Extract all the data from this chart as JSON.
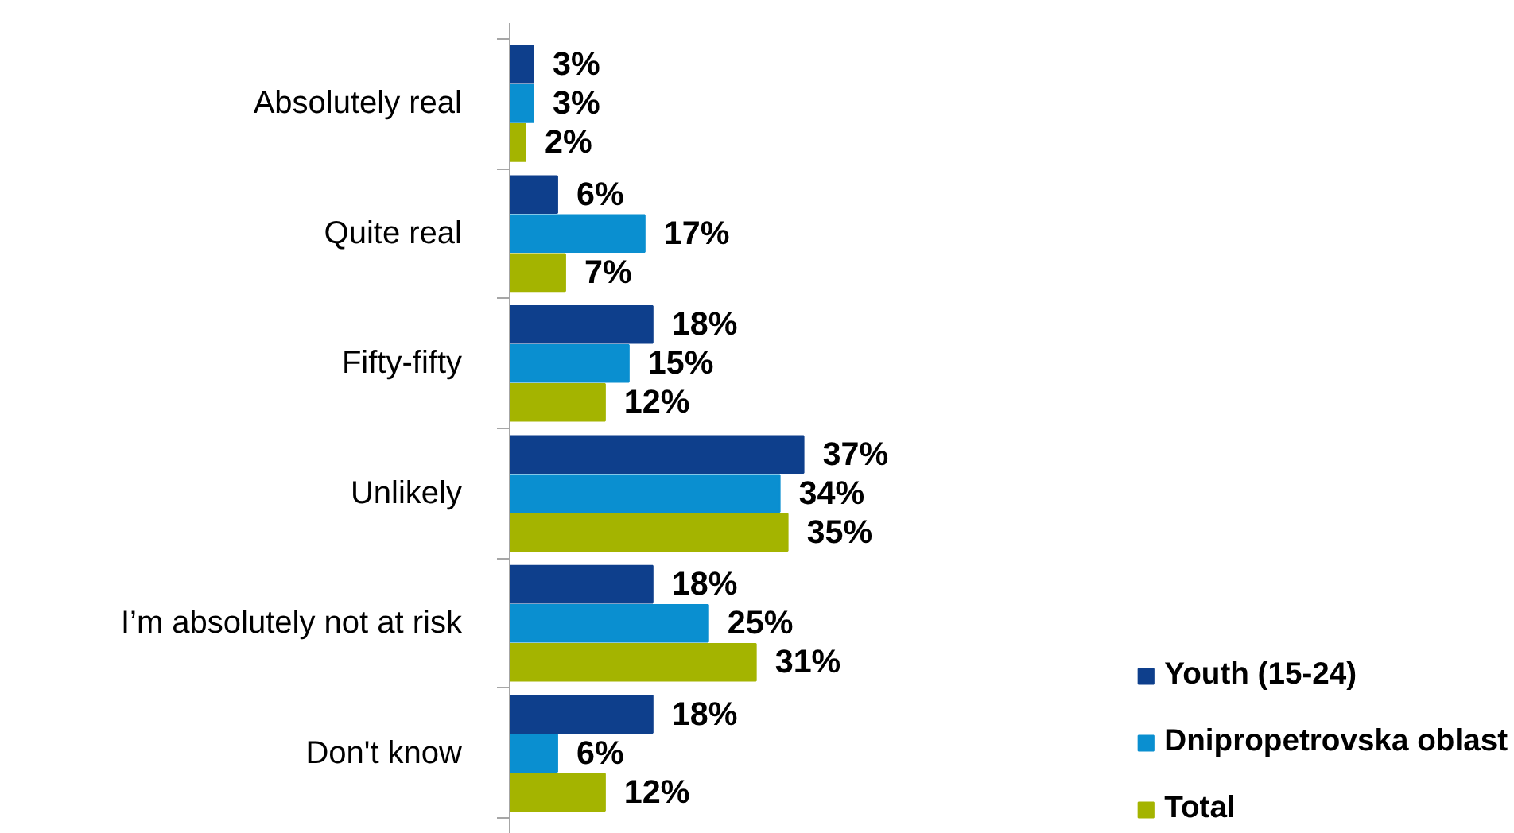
{
  "chart_data": {
    "type": "bar",
    "orientation": "horizontal",
    "categories": [
      "Absolutely real",
      "Quite real",
      "Fifty-fifty",
      "Unlikely",
      "I’m absolutely not at risk",
      "Don't know"
    ],
    "series": [
      {
        "name": "Youth (15-24)",
        "color": "#0e3f8c",
        "values": [
          3,
          6,
          18,
          37,
          18,
          18
        ],
        "value_labels": [
          "3%",
          "6%",
          "18%",
          "37%",
          "18%",
          "18%"
        ]
      },
      {
        "name": "Dnipropetrovska oblast",
        "color": "#0a8fd0",
        "values": [
          3,
          17,
          15,
          34,
          25,
          6
        ],
        "value_labels": [
          "3%",
          "17%",
          "15%",
          "34%",
          "25%",
          "6%"
        ]
      },
      {
        "name": "Total",
        "color": "#a4b400",
        "values": [
          2,
          7,
          12,
          35,
          31,
          12
        ],
        "value_labels": [
          "2%",
          "7%",
          "12%",
          "35%",
          "31%",
          "12%"
        ]
      }
    ],
    "legend": "bottom right",
    "grid": false
  }
}
